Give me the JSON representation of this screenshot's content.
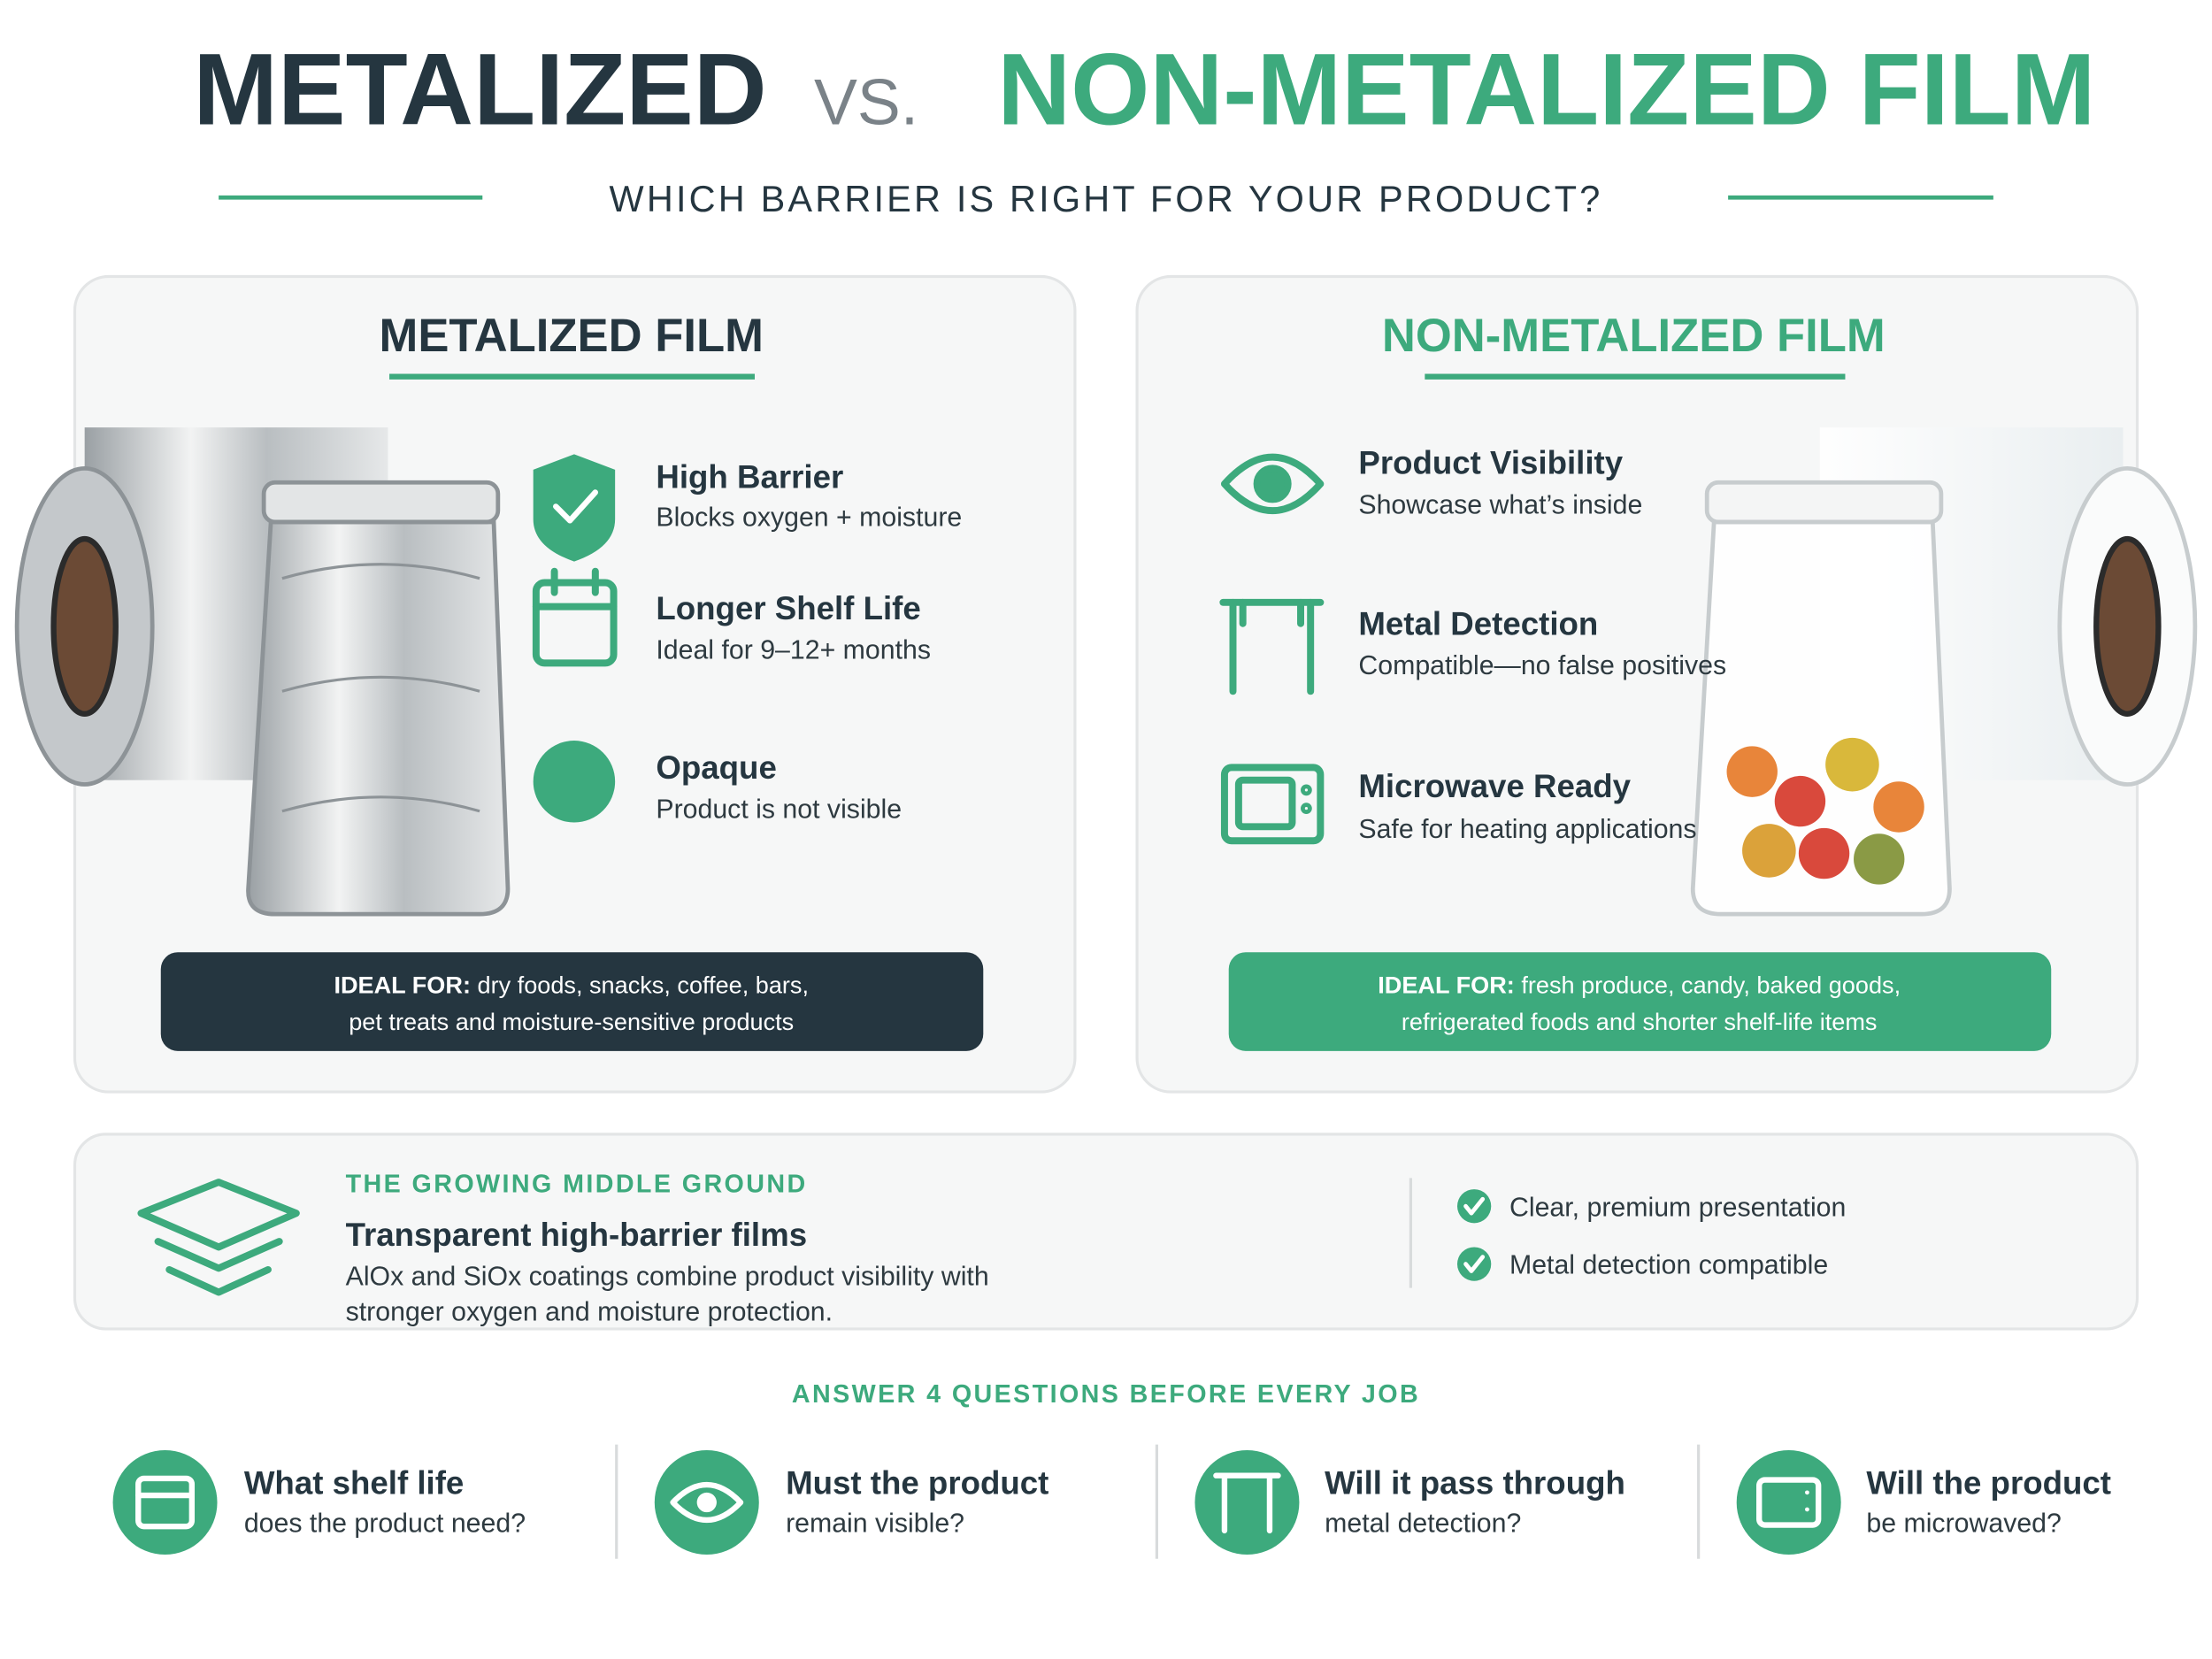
{
  "header": {
    "title_left": "METALIZED",
    "title_vs": "VS.",
    "title_right": "NON-METALIZED FILM",
    "subtitle": "WHICH BARRIER IS RIGHT FOR YOUR PRODUCT?"
  },
  "panels": [
    {
      "title": "METALIZED FILM",
      "features": [
        {
          "title": "High Barrier",
          "desc": "Blocks oxygen + moisture"
        },
        {
          "title": "Longer Shelf Life",
          "desc": "Ideal for 9–12+ months"
        },
        {
          "title": "Opaque",
          "desc": "Product is not visible"
        }
      ],
      "ideal_label": "IDEAL FOR:",
      "ideal_lines": [
        "dry foods, snacks, coffee, bars,",
        "pet treats and moisture-sensitive products"
      ]
    },
    {
      "title": "NON-METALIZED FILM",
      "features": [
        {
          "title": "Product Visibility",
          "desc": "Showcase what’s inside"
        },
        {
          "title": "Metal Detection",
          "desc": "Compatible—no false positives"
        },
        {
          "title": "Microwave Ready",
          "desc": "Safe for heating applications"
        }
      ],
      "ideal_label": "IDEAL FOR:",
      "ideal_lines": [
        "fresh produce, candy, baked goods,",
        "refrigerated foods and shorter shelf-life items"
      ]
    }
  ],
  "middle": {
    "kicker": "THE GROWING MIDDLE GROUND",
    "title": "Transparent high-barrier films",
    "desc_lines": [
      "AlOx and SiOx coatings combine product visibility with",
      "stronger oxygen and moisture protection."
    ],
    "checks": [
      "Clear, premium presentation",
      "Metal detection compatible"
    ]
  },
  "questions": {
    "heading": "ANSWER 4 QUESTIONS BEFORE EVERY JOB",
    "items": [
      {
        "title": "What shelf life",
        "desc": "does the product need?"
      },
      {
        "title": "Must the product",
        "desc": "remain visible?"
      },
      {
        "title": "Will it pass through",
        "desc": "metal detection?"
      },
      {
        "title": "Will the product",
        "desc": "be microwaved?"
      }
    ]
  }
}
